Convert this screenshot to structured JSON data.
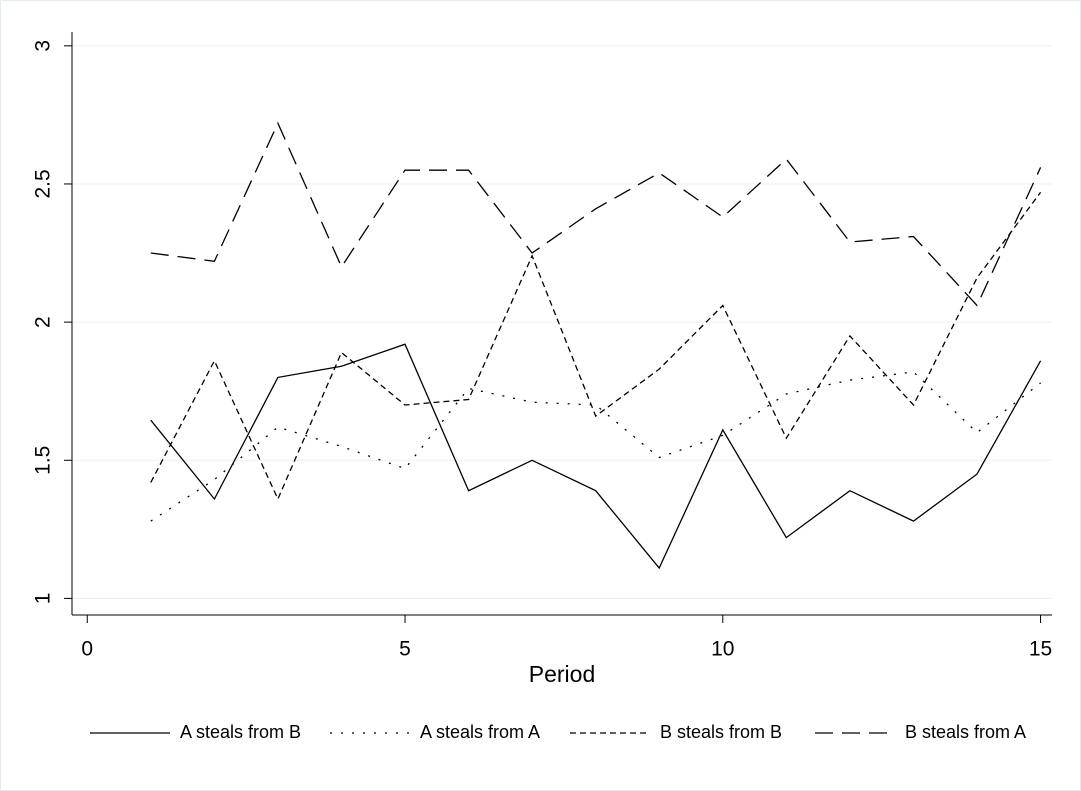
{
  "chart_data": {
    "type": "line",
    "x_label": "Period",
    "x": [
      1,
      2,
      3,
      4,
      5,
      6,
      7,
      8,
      9,
      10,
      11,
      12,
      13,
      14,
      15
    ],
    "series": [
      {
        "name": "A steals from B",
        "color": "#000000",
        "dash": "solid",
        "values": [
          1.645,
          1.36,
          1.8,
          1.84,
          1.92,
          1.39,
          1.5,
          1.39,
          1.11,
          1.61,
          1.22,
          1.39,
          1.28,
          1.45,
          1.86
        ]
      },
      {
        "name": "A steals from A",
        "color": "#000000",
        "dash": "dotted",
        "values": [
          1.28,
          1.43,
          1.62,
          1.55,
          1.47,
          1.76,
          1.71,
          1.7,
          1.51,
          1.59,
          1.74,
          1.79,
          1.82,
          1.6,
          1.78
        ]
      },
      {
        "name": "B steals from B",
        "color": "#000000",
        "dash": "short-dash",
        "values": [
          1.42,
          1.86,
          1.36,
          1.89,
          1.7,
          1.72,
          2.24,
          1.66,
          1.83,
          2.06,
          1.58,
          1.95,
          1.7,
          2.16,
          2.47
        ]
      },
      {
        "name": "B steals from A",
        "color": "#000000",
        "dash": "long-dash",
        "values": [
          2.25,
          2.22,
          2.72,
          2.2,
          2.55,
          2.55,
          2.25,
          2.41,
          2.54,
          2.38,
          2.59,
          2.29,
          2.31,
          2.06,
          2.56
        ]
      }
    ],
    "xlim": [
      -0.24,
      15.18
    ],
    "xticks": [
      0,
      5,
      10,
      15
    ],
    "ylim": [
      0.94,
      3.05
    ],
    "yticks": [
      1,
      1.5,
      2,
      2.5,
      3
    ],
    "grid": true,
    "legend": "bottom"
  }
}
